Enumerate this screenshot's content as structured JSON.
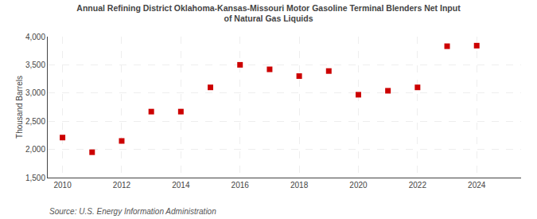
{
  "chart_data": {
    "type": "scatter",
    "title": "Annual Refining District Oklahoma-Kansas-Missouri Motor Gasoline Terminal Blenders Net Input\nof Natural Gas Liquids",
    "ylabel": "Thousand Barrels",
    "annotations": [
      "Source: U.S. Energy Information Administration"
    ],
    "x": [
      2010,
      2011,
      2012,
      2013,
      2014,
      2015,
      2016,
      2017,
      2018,
      2019,
      2020,
      2021,
      2022,
      2023,
      2024
    ],
    "values": [
      2210,
      1950,
      2150,
      2670,
      2670,
      3100,
      3500,
      3420,
      3300,
      3390,
      2970,
      3040,
      3100,
      3830,
      3840
    ],
    "color": "#cc0000",
    "marker": "square",
    "xlim": [
      2009.5,
      2025.5
    ],
    "xticks": [
      2010,
      2012,
      2014,
      2016,
      2018,
      2020,
      2022,
      2024
    ],
    "ylim": [
      1500,
      4000
    ],
    "yticks": [
      {
        "value": 1500,
        "label": "1,500"
      },
      {
        "value": 2000,
        "label": "2,000"
      },
      {
        "value": 2500,
        "label": "2,500"
      },
      {
        "value": 3000,
        "label": "3,000"
      },
      {
        "value": 3500,
        "label": "3,500"
      },
      {
        "value": 4000,
        "label": "4,000"
      }
    ],
    "grid": true
  }
}
